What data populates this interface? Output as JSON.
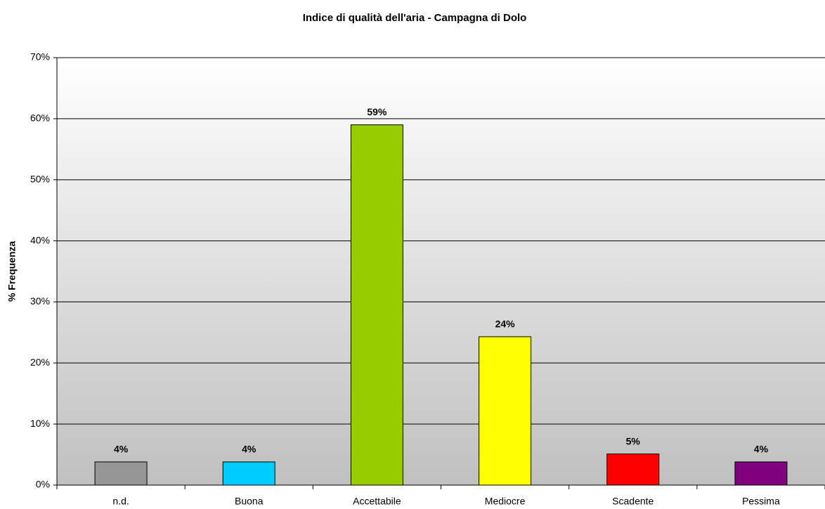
{
  "chart_data": {
    "type": "bar",
    "title": "Indice di qualità dell'aria - Campagna di Dolo",
    "ylabel": "% Frequenza",
    "categories": [
      "n.d.",
      "Buona",
      "Accettabile",
      "Mediocre",
      "Scadente",
      "Pessima"
    ],
    "values": [
      3.8,
      3.8,
      59,
      24.3,
      5.1,
      3.8
    ],
    "value_labels": [
      "4%",
      "4%",
      "59%",
      "24%",
      "5%",
      "4%"
    ],
    "colors": [
      "#969696",
      "#00ccff",
      "#99cc00",
      "#ffff00",
      "#ff0000",
      "#800080"
    ],
    "ylim": [
      0,
      70
    ],
    "yticks": [
      {
        "value": 0,
        "label": "0%"
      },
      {
        "value": 10,
        "label": "10%"
      },
      {
        "value": 20,
        "label": "20%"
      },
      {
        "value": 30,
        "label": "30%"
      },
      {
        "value": 40,
        "label": "40%"
      },
      {
        "value": 50,
        "label": "50%"
      },
      {
        "value": 60,
        "label": "60%"
      },
      {
        "value": 70,
        "label": "70%"
      }
    ],
    "grid": true
  }
}
